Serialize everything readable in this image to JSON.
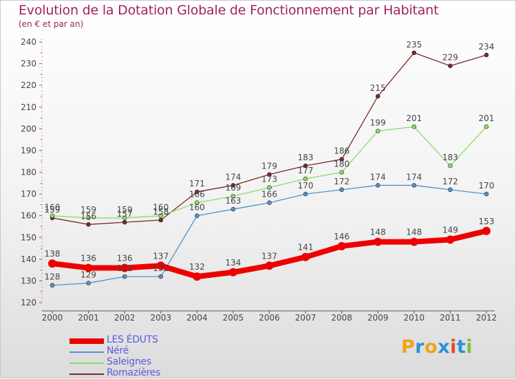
{
  "title": "Evolution de la Dotation Globale de Fonctionnement par Habitant",
  "subtitle": "(en € et par an)",
  "chart_data": {
    "type": "line",
    "title": "Evolution de la Dotation Globale de Fonctionnement par Habitant",
    "subtitle": "(en € et par an)",
    "xlabel": "",
    "ylabel": "",
    "categories": [
      "2000",
      "2001",
      "2002",
      "2003",
      "2004",
      "2005",
      "2006",
      "2007",
      "2008",
      "2009",
      "2010",
      "2011",
      "2012"
    ],
    "ylim": [
      120,
      240
    ],
    "yticks": [
      120,
      130,
      140,
      150,
      160,
      170,
      180,
      190,
      200,
      210,
      220,
      230,
      240
    ],
    "grid": false,
    "series": [
      {
        "name": "LES ÉDUTS",
        "color": "#ee0000",
        "values": [
          138,
          136,
          136,
          137,
          132,
          134,
          137,
          141,
          146,
          148,
          148,
          149,
          153
        ]
      },
      {
        "name": "Néré",
        "color": "#4f92cc",
        "values": [
          128,
          129,
          132,
          132,
          160,
          163,
          166,
          170,
          172,
          174,
          174,
          172,
          170
        ]
      },
      {
        "name": "Saleignes",
        "color": "#88dd66",
        "values": [
          160,
          159,
          159,
          160,
          166,
          169,
          173,
          177,
          180,
          199,
          201,
          183,
          201
        ]
      },
      {
        "name": "Romazières",
        "color": "#7a2828",
        "values": [
          159,
          156,
          157,
          158,
          171,
          174,
          179,
          183,
          186,
          215,
          235,
          229,
          234
        ]
      }
    ]
  },
  "legend": [
    {
      "name": "LES ÉDUTS",
      "color": "#ee0000"
    },
    {
      "name": "Néré",
      "color": "#4f92cc"
    },
    {
      "name": "Saleignes",
      "color": "#88dd66"
    },
    {
      "name": "Romazières",
      "color": "#7a2828"
    }
  ],
  "logo": {
    "text": "Proxiti",
    "colors": [
      "#f0a31b",
      "#2c8fd8",
      "#f0a31b",
      "#2c8fd8",
      "#e94b24",
      "#2c8fd8",
      "#7cc142"
    ]
  }
}
